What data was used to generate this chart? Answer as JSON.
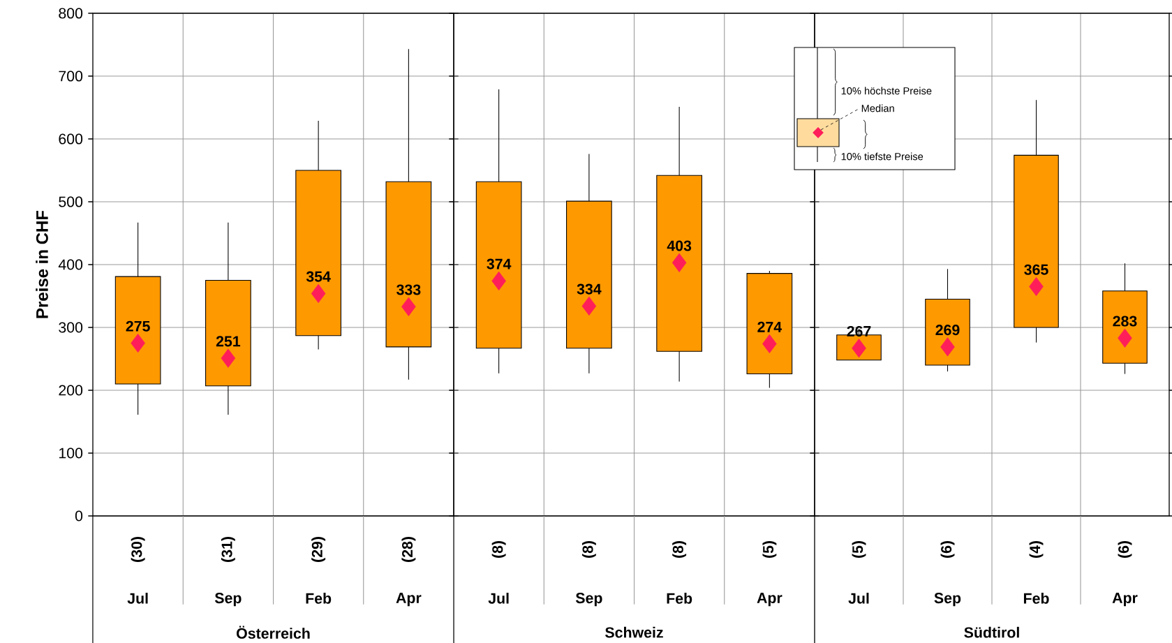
{
  "chart_data": [
    {
      "type": "box",
      "xlabel": "Österreich",
      "ylabel": "Preise in CHF",
      "categories": [
        "Jul",
        "Sep",
        "Feb",
        "Apr"
      ],
      "boxes": [
        {
          "low": 161,
          "q1": 210,
          "median": 275,
          "q3": 381,
          "high": 467
        },
        {
          "low": 161,
          "q1": 207,
          "median": 251,
          "q3": 375,
          "high": 467
        },
        {
          "low": 265,
          "q1": 287,
          "median": 354,
          "q3": 550,
          "high": 629
        },
        {
          "low": 217,
          "q1": 269,
          "median": 333,
          "q3": 532,
          "high": 743
        }
      ],
      "color": "#ff9900",
      "marker": "diamond",
      "value_labels": [
        "275",
        "251",
        "354",
        "333"
      ],
      "grid": true,
      "ylim": [
        0,
        800
      ],
      "yticks": [
        0,
        100,
        200,
        300,
        400,
        500,
        600,
        700,
        800
      ],
      "annotations": [
        "(30)",
        "(31)",
        "(29)",
        "(28)"
      ]
    },
    {
      "type": "box",
      "xlabel": "Schweiz",
      "categories": [
        "Jul",
        "Sep",
        "Feb",
        "Apr"
      ],
      "boxes": [
        {
          "low": 227,
          "q1": 267,
          "median": 374,
          "q3": 532,
          "high": 679
        },
        {
          "low": 227,
          "q1": 267,
          "median": 334,
          "q3": 501,
          "high": 576
        },
        {
          "low": 214,
          "q1": 262,
          "median": 403,
          "q3": 542,
          "high": 651
        },
        {
          "low": 204,
          "q1": 226,
          "median": 274,
          "q3": 386,
          "high": 390
        }
      ],
      "color": "#ff9900",
      "marker": "diamond",
      "value_labels": [
        "374",
        "334",
        "403",
        "274"
      ],
      "grid": true,
      "tick_labels": "x",
      "ylim": [
        0,
        800
      ],
      "yticks": [
        0,
        100,
        200,
        300,
        400,
        500,
        600,
        700,
        800
      ],
      "annotations": [
        "(8)",
        "(8)",
        "(8)",
        "(5)"
      ]
    },
    {
      "type": "box",
      "xlabel": "Südtirol",
      "categories": [
        "Jul",
        "Sep",
        "Feb",
        "Apr"
      ],
      "boxes": [
        {
          "low": 248,
          "q1": 248,
          "median": 267,
          "q3": 288,
          "high": 298
        },
        {
          "low": 230,
          "q1": 240,
          "median": 269,
          "q3": 345,
          "high": 393
        },
        {
          "low": 276,
          "q1": 300,
          "median": 365,
          "q3": 574,
          "high": 662
        },
        {
          "low": 226,
          "q1": 243,
          "median": 283,
          "q3": 358,
          "high": 402
        }
      ],
      "color": "#ff9900",
      "marker": "diamond",
      "value_labels": [
        "267",
        "269",
        "365",
        "283"
      ],
      "grid": true,
      "tick_labels": "x",
      "ylim": [
        0,
        800
      ],
      "yticks": [
        0,
        100,
        200,
        300,
        400,
        500,
        600,
        700,
        800
      ],
      "annotations": [
        "(5)",
        "(6)",
        "(4)",
        "(6)",
        "10% höchste Preise",
        "Median",
        "10% tiefste Preise"
      ]
    }
  ]
}
